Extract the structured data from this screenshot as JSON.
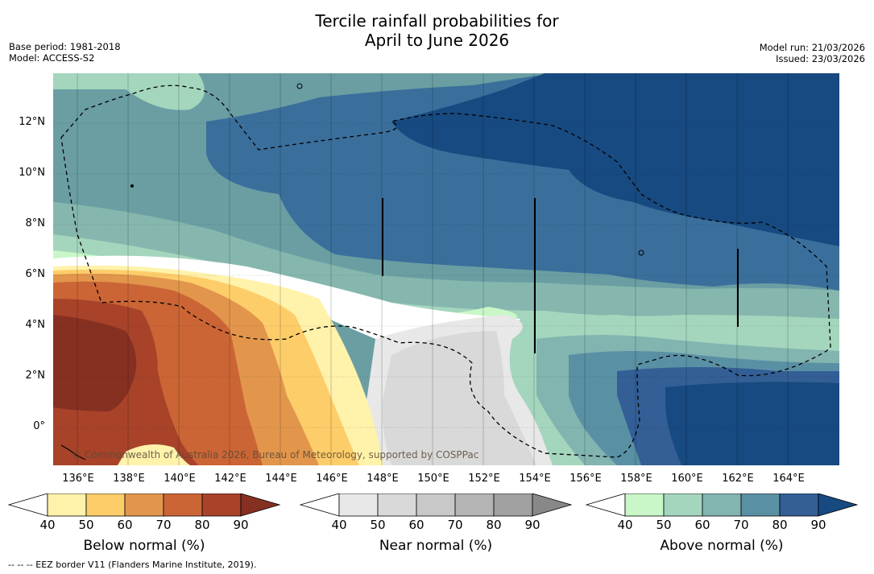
{
  "title_line1": "Tercile rainfall probabilities for",
  "title_line2": "April to June 2026",
  "base_period": "Base period: 1981-2018",
  "model": "Model: ACCESS-S2",
  "model_run": "Model run: 21/03/2026",
  "issued": "Issued: 23/03/2026",
  "credit": "© Commonwealth of Australia 2026, Bureau of Meteorology, supported by COSPPac",
  "footnote": "--  --  -- EEZ border V11 (Flanders Marine Institute, 2019).",
  "lat_labels": [
    "12°N",
    "10°N",
    "8°N",
    "6°N",
    "4°N",
    "2°N",
    "0°"
  ],
  "lon_labels": [
    "136°E",
    "138°E",
    "140°E",
    "142°E",
    "144°E",
    "146°E",
    "148°E",
    "150°E",
    "152°E",
    "154°E",
    "156°E",
    "158°E",
    "160°E",
    "162°E",
    "164°E"
  ],
  "colorbars": [
    {
      "title": "Below normal (%)",
      "ticks": [
        "40",
        "50",
        "60",
        "70",
        "80",
        "90"
      ],
      "colors": [
        "#fff2ab",
        "#fdcd6a",
        "#e2964c",
        "#cb6535",
        "#a8432a",
        "#863022"
      ]
    },
    {
      "title": "Near normal (%)",
      "ticks": [
        "40",
        "50",
        "60",
        "70",
        "80",
        "90"
      ],
      "colors": [
        "#e8e8e8",
        "#d9d9d9",
        "#c8c8c8",
        "#b4b4b4",
        "#a0a0a0",
        "#888888"
      ]
    },
    {
      "title": "Above normal (%)",
      "ticks": [
        "40",
        "50",
        "60",
        "70",
        "80",
        "90"
      ],
      "colors": [
        "#c9f7c8",
        "#a4d6bd",
        "#82b4b0",
        "#5a90a4",
        "#335f96",
        "#174a80"
      ]
    }
  ]
}
